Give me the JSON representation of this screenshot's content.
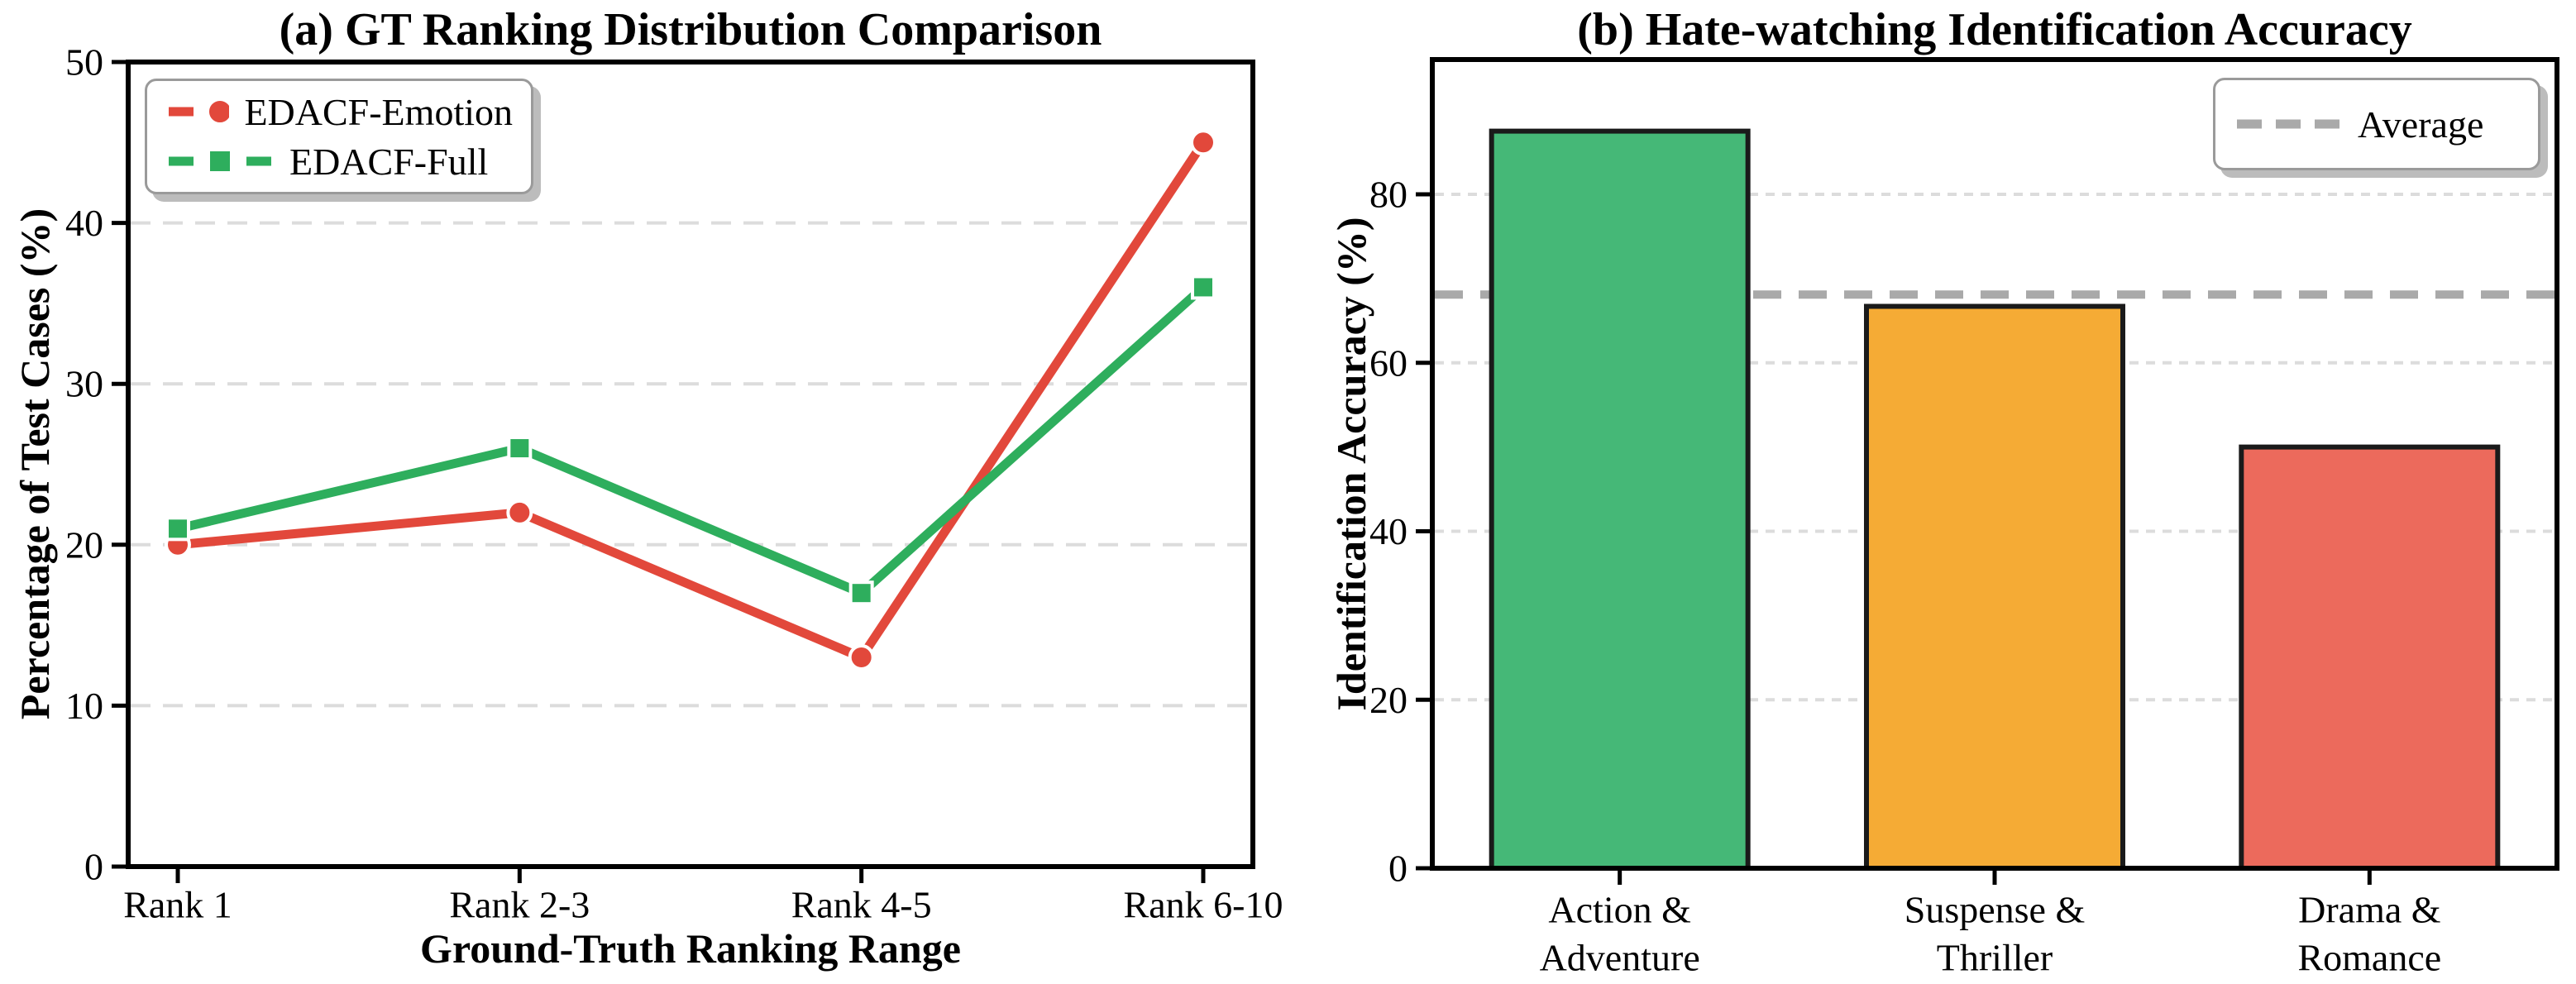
{
  "figure": {
    "background": "#ffffff",
    "text_color": "#000000",
    "spine_color": "#000000",
    "grid_color": "#dcdcdc"
  },
  "chart_data": [
    {
      "id": "gt-ranking-distribution",
      "type": "line",
      "title": "(a) GT Ranking Distribution Comparison",
      "xlabel": "Ground-Truth Ranking Range",
      "ylabel": "Percentage of Test Cases (%)",
      "categories": [
        "Rank 1",
        "Rank 2-3",
        "Rank 4-5",
        "Rank 6-10"
      ],
      "series": [
        {
          "name": "EDACF-Emotion",
          "marker": "circle",
          "color": "#e2483b",
          "values": [
            20,
            22,
            13,
            45
          ]
        },
        {
          "name": "EDACF-Full",
          "marker": "square",
          "color": "#2eae5d",
          "values": [
            21,
            26,
            17,
            36
          ]
        }
      ],
      "ylim": [
        0,
        50
      ],
      "yticks": [
        0,
        10,
        20,
        30,
        40,
        50
      ],
      "grid": {
        "axis": "y",
        "style": "dashed",
        "color": "#dcdcdc"
      },
      "legend": {
        "position": "upper-left"
      }
    },
    {
      "id": "hate-watching-accuracy",
      "type": "bar",
      "title": "(b) Hate-watching Identification Accuracy",
      "xlabel": "",
      "ylabel": "Identification Accuracy (%)",
      "categories": [
        [
          "Action &",
          "Adventure"
        ],
        [
          "Suspense &",
          "Thriller"
        ],
        [
          "Drama &",
          "Romance"
        ]
      ],
      "values": [
        87.5,
        66.7,
        50.0
      ],
      "bar_colors": [
        "#45b877",
        "#f5ab35",
        "#ec6a5c"
      ],
      "bar_edge_color": "#1a1a1a",
      "average_line": {
        "label": "Average",
        "value": 68.1,
        "color": "#a9a9a9",
        "style": "dashed"
      },
      "ylim": [
        0,
        96
      ],
      "yticks": [
        0,
        20,
        40,
        60,
        80
      ],
      "grid": {
        "axis": "y",
        "style": "dashed",
        "color": "#dcdcdc"
      },
      "legend": {
        "position": "upper-right"
      }
    }
  ]
}
